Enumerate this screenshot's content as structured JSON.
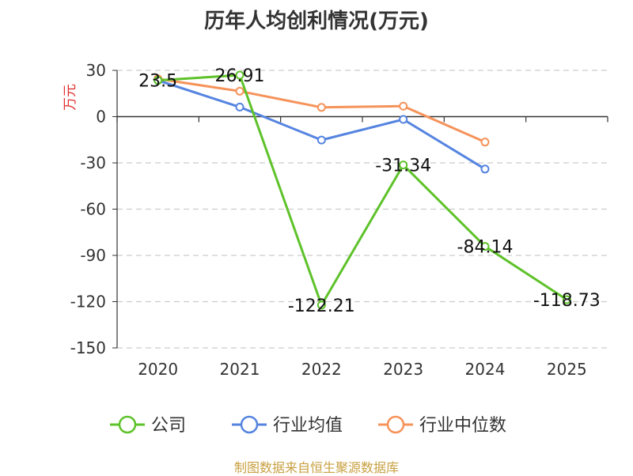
{
  "chart_data": {
    "type": "line",
    "title": "历年人均创利情况(万元)",
    "ylabel": "万元",
    "xlabel": "",
    "categories": [
      "2020",
      "2021",
      "2022",
      "2023",
      "2024",
      "2025"
    ],
    "ylim": [
      -150,
      30
    ],
    "yticks": [
      30,
      0,
      -30,
      -60,
      -90,
      -120,
      -150
    ],
    "grid": true,
    "legend_position": "bottom",
    "series": [
      {
        "name": "公司",
        "color": "#5ec22a",
        "values": [
          23.5,
          26.91,
          -122.21,
          -31.34,
          -84.14,
          -118.73
        ],
        "labels": [
          "23.5",
          "26.91",
          "-122.21",
          "-31.34",
          "-84.14",
          "-118.73"
        ]
      },
      {
        "name": "行业均值",
        "color": "#5584e0",
        "values": [
          23.5,
          6.2,
          -15.2,
          -1.8,
          -34.0,
          null
        ]
      },
      {
        "name": "行业中位数",
        "color": "#f5935a",
        "values": [
          24.5,
          16.5,
          6.0,
          6.8,
          -16.5,
          null
        ]
      }
    ]
  },
  "footer": "制图数据来自恒生聚源数据库"
}
